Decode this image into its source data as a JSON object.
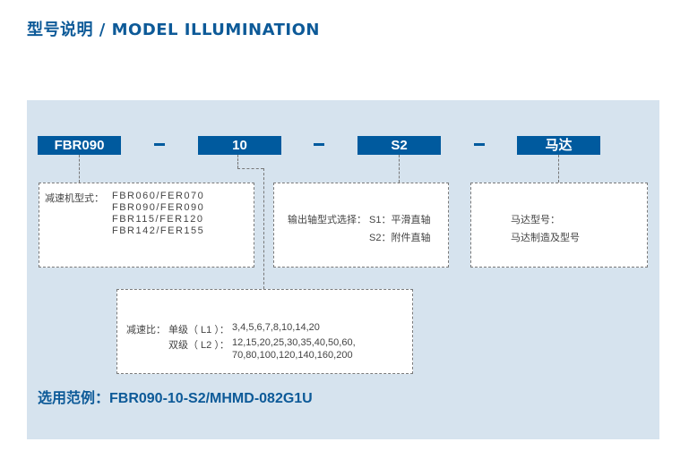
{
  "header": {
    "title": "型号说明 /  MODEL ILLUMINATION"
  },
  "code_boxes": [
    {
      "label": "FBR090"
    },
    {
      "label": "10"
    },
    {
      "label": "S2"
    },
    {
      "label": "马达"
    }
  ],
  "separator": "–",
  "reducer": {
    "label": "减速机型式：",
    "models": [
      "FBR060/FER070",
      "FBR090/FER090",
      "FBR115/FER120",
      "FBR142/FER155"
    ]
  },
  "shaft": {
    "label": "输出轴型式选择：",
    "options": [
      "S1：平滑直轴",
      "S2：附件直轴"
    ]
  },
  "motor": {
    "line1": "马达型号：",
    "line2": "马达制造及型号"
  },
  "ratio": {
    "label": "减速比：",
    "single_label": "单级（ L1 ）：",
    "single_values": "3,4,5,6,7,8,10,14,20",
    "double_label": "双级（ L2 ）：",
    "double_values_1": "12,15,20,25,30,35,40,50,60,",
    "double_values_2": "70,80,100,120,140,160,200"
  },
  "example": {
    "text": "选用范例：FBR090-10-S2/MHMD-082G1U"
  },
  "colors": {
    "brand": "#005a9e",
    "panel": "#d6e3ee"
  }
}
